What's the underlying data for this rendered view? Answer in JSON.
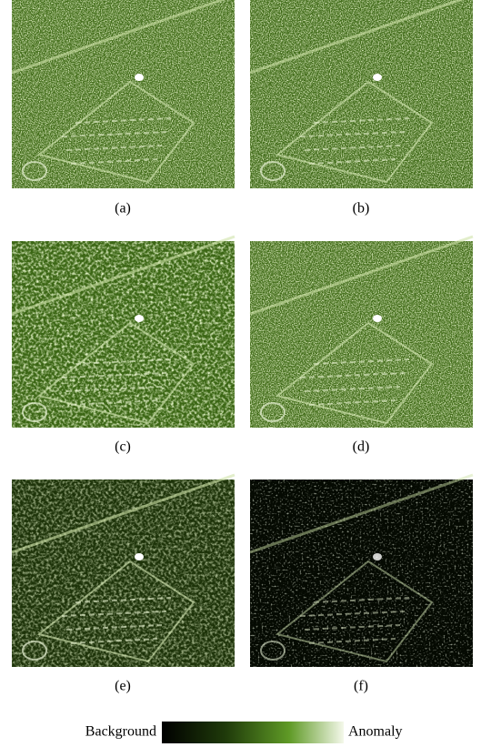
{
  "panels": [
    {
      "label": "(a)"
    },
    {
      "label": "(b)"
    },
    {
      "label": "(c)"
    },
    {
      "label": "(d)"
    },
    {
      "label": "(e)"
    },
    {
      "label": "(f)"
    }
  ],
  "colorbar": {
    "low": "Background",
    "high": "Anomaly"
  }
}
